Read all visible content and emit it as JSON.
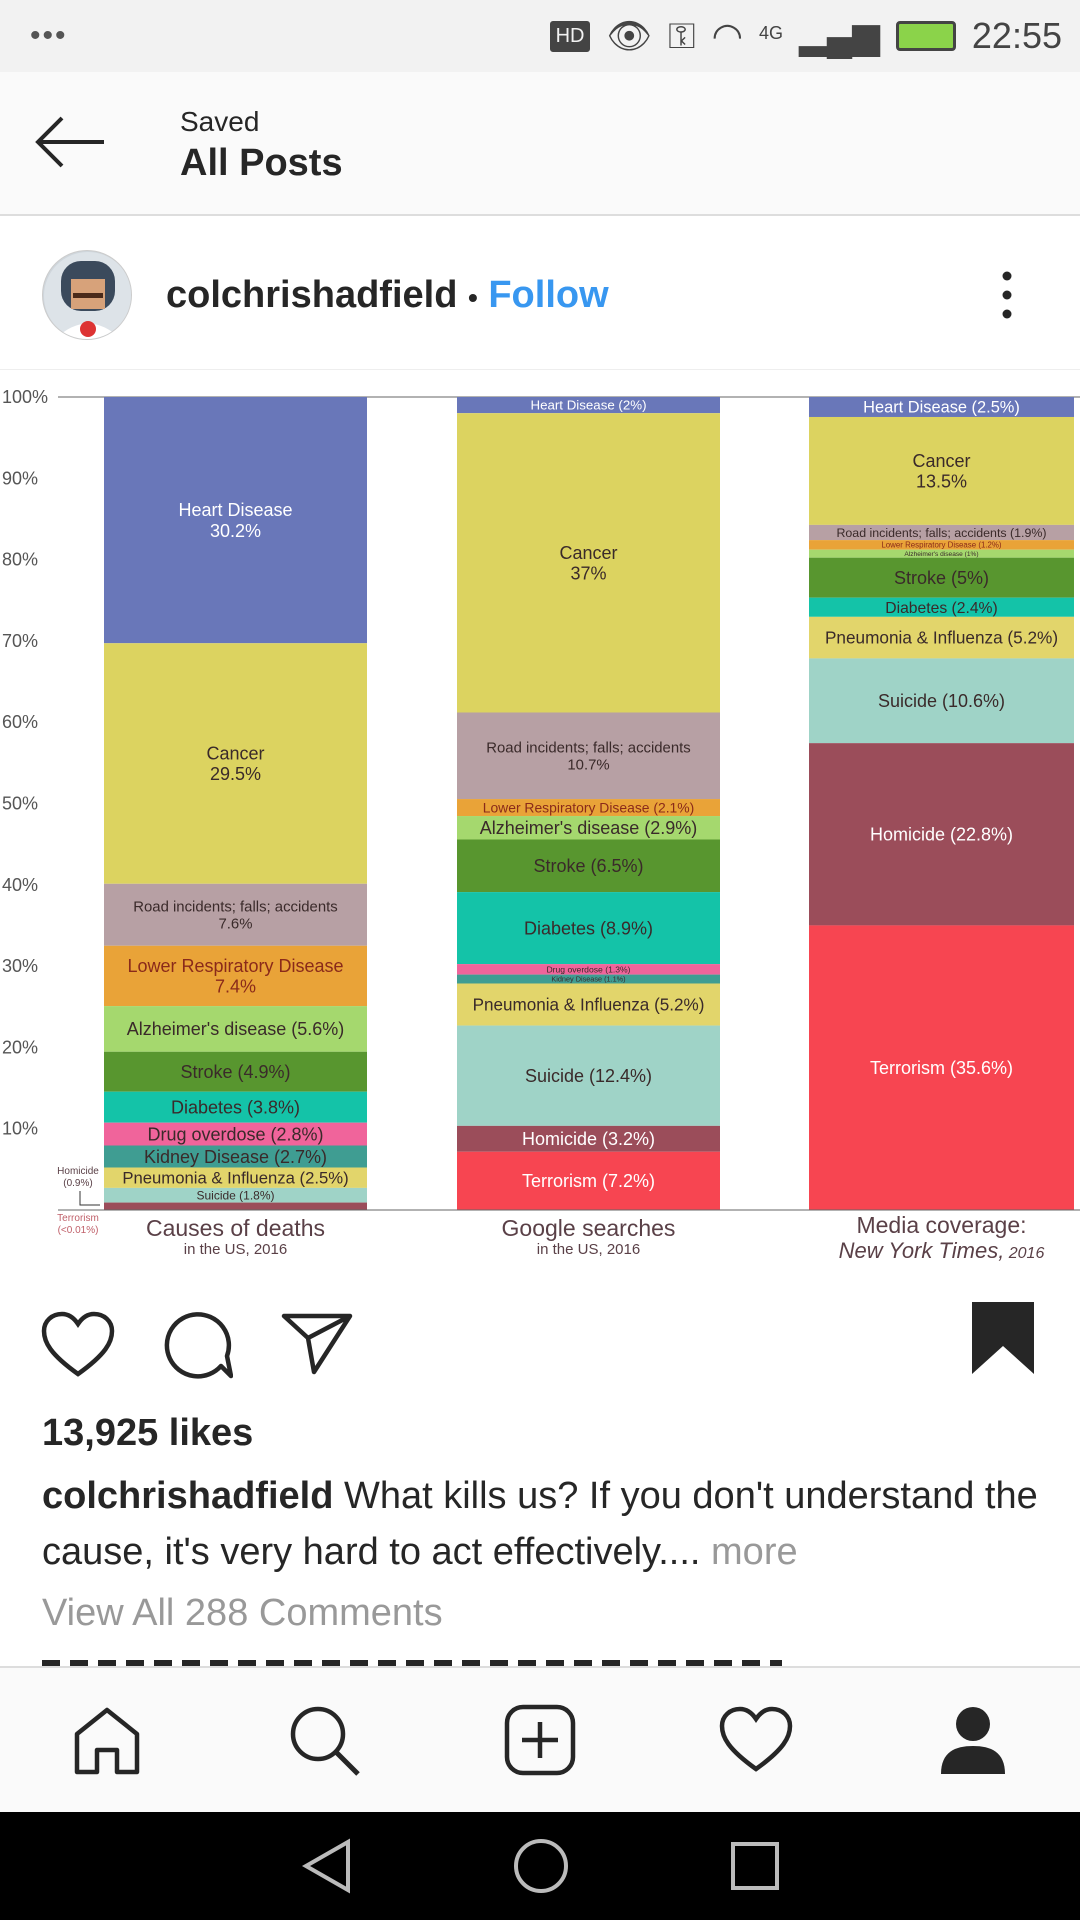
{
  "status_bar": {
    "badge": "HD",
    "network": "4G",
    "time": "22:55"
  },
  "header": {
    "subtitle": "Saved",
    "title": "All Posts"
  },
  "post": {
    "username": "colchrishadfield",
    "separator": "•",
    "follow_label": "Follow",
    "likes": "13,925 likes",
    "caption_text": "What kills us? If you don't understand the cause, it's very hard to act effectively....",
    "more_label": "more",
    "comments_link": "View All 288 Comments",
    "bookmarked": true
  },
  "chart_data": {
    "type": "bar",
    "stacked": true,
    "ylim": [
      0,
      100
    ],
    "yticks": [
      "10%",
      "20%",
      "30%",
      "40%",
      "50%",
      "60%",
      "70%",
      "80%",
      "90%",
      "100%"
    ],
    "colors": {
      "Heart Disease": "#6977b9",
      "Cancer": "#dcd360",
      "Road incidents": "#b7a0a4",
      "Lower Respiratory Disease": "#e9a338",
      "Alzheimer's disease": "#a5d86e",
      "Stroke": "#58962f",
      "Diabetes": "#14c3a8",
      "Drug overdose": "#f0649b",
      "Kidney Disease": "#3f9d92",
      "Pneumonia & Influenza": "#e2d56b",
      "Suicide": "#9fd3c7",
      "Homicide": "#9b4d5a",
      "Terrorism": "#f74551"
    },
    "categories": [
      {
        "title": "Causes of deaths",
        "subtitle": "in the US, 2016",
        "subtitle_italic": "",
        "annotations": {
          "homicide": "Homicide",
          "homicide_value": "(0.9%)",
          "terrorism": "Terrorism",
          "terrorism_value": "(<0.01%)"
        },
        "segments": [
          {
            "name": "Heart Disease",
            "value": 30.2,
            "label": [
              "Heart Disease",
              "30.2%"
            ]
          },
          {
            "name": "Cancer",
            "value": 29.5,
            "label": [
              "Cancer",
              "29.5%"
            ]
          },
          {
            "name": "Road incidents",
            "value": 7.6,
            "label": [
              "Road incidents; falls; accidents",
              "7.6%"
            ]
          },
          {
            "name": "Lower Respiratory Disease",
            "value": 7.4,
            "label": [
              "Lower Respiratory Disease",
              "7.4%"
            ]
          },
          {
            "name": "Alzheimer's disease",
            "value": 5.6,
            "label": [
              "Alzheimer's disease (5.6%)"
            ]
          },
          {
            "name": "Stroke",
            "value": 4.9,
            "label": [
              "Stroke (4.9%)"
            ]
          },
          {
            "name": "Diabetes",
            "value": 3.8,
            "label": [
              "Diabetes (3.8%)"
            ]
          },
          {
            "name": "Drug overdose",
            "value": 2.8,
            "label": [
              "Drug overdose (2.8%)"
            ]
          },
          {
            "name": "Kidney Disease",
            "value": 2.7,
            "label": [
              "Kidney Disease (2.7%)"
            ]
          },
          {
            "name": "Pneumonia & Influenza",
            "value": 2.5,
            "label": [
              "Pneumonia & Influenza (2.5%)"
            ]
          },
          {
            "name": "Suicide",
            "value": 1.8,
            "label": [
              "Suicide (1.8%)"
            ]
          },
          {
            "name": "Homicide",
            "value": 0.9,
            "label": []
          },
          {
            "name": "Terrorism",
            "value": 0.01,
            "label": []
          }
        ]
      },
      {
        "title": "Google searches",
        "subtitle": "in the US, 2016",
        "subtitle_italic": "",
        "segments": [
          {
            "name": "Heart Disease",
            "value": 2,
            "label": [
              "Heart Disease (2%)"
            ]
          },
          {
            "name": "Cancer",
            "value": 37,
            "label": [
              "Cancer",
              "37%"
            ]
          },
          {
            "name": "Road incidents",
            "value": 10.7,
            "label": [
              "Road incidents; falls; accidents",
              "10.7%"
            ]
          },
          {
            "name": "Lower Respiratory Disease",
            "value": 2.1,
            "label": [
              "Lower Respiratory Disease (2.1%)"
            ]
          },
          {
            "name": "Alzheimer's disease",
            "value": 2.9,
            "label": [
              "Alzheimer's disease (2.9%)"
            ]
          },
          {
            "name": "Stroke",
            "value": 6.5,
            "label": [
              "Stroke (6.5%)"
            ]
          },
          {
            "name": "Diabetes",
            "value": 8.9,
            "label": [
              "Diabetes (8.9%)"
            ]
          },
          {
            "name": "Drug overdose",
            "value": 1.3,
            "label": [
              "Drug overdose (1.3%)"
            ]
          },
          {
            "name": "Kidney Disease",
            "value": 1.1,
            "label": [
              "Kidney Disease (1.1%)"
            ]
          },
          {
            "name": "Pneumonia & Influenza",
            "value": 5.2,
            "label": [
              "Pneumonia & Influenza (5.2%)"
            ]
          },
          {
            "name": "Suicide",
            "value": 12.4,
            "label": [
              "Suicide (12.4%)"
            ]
          },
          {
            "name": "Homicide",
            "value": 3.2,
            "label": [
              "Homicide (3.2%)"
            ]
          },
          {
            "name": "Terrorism",
            "value": 7.2,
            "label": [
              "Terrorism (7.2%)"
            ]
          }
        ]
      },
      {
        "title": "Media coverage:",
        "subtitle": "New York Times,",
        "subtitle_italic": "2016",
        "segments": [
          {
            "name": "Heart Disease",
            "value": 2.5,
            "label": [
              "Heart Disease (2.5%)"
            ]
          },
          {
            "name": "Cancer",
            "value": 13.5,
            "label": [
              "Cancer",
              "13.5%"
            ]
          },
          {
            "name": "Road incidents",
            "value": 1.9,
            "label": [
              "Road incidents; falls; accidents (1.9%)"
            ]
          },
          {
            "name": "Lower Respiratory Disease",
            "value": 1.2,
            "label": [
              "Lower Respiratory Disease (1.2%)"
            ]
          },
          {
            "name": "Alzheimer's disease",
            "value": 1,
            "label": [
              "Alzheimer's disease (1%)"
            ]
          },
          {
            "name": "Stroke",
            "value": 5,
            "label": [
              "Stroke (5%)"
            ]
          },
          {
            "name": "Diabetes",
            "value": 2.4,
            "label": [
              "Diabetes (2.4%)"
            ]
          },
          {
            "name": "Pneumonia & Influenza",
            "value": 5.2,
            "label": [
              "Pneumonia & Influenza (5.2%)"
            ]
          },
          {
            "name": "Suicide",
            "value": 10.6,
            "label": [
              "Suicide (10.6%)"
            ]
          },
          {
            "name": "Homicide",
            "value": 22.8,
            "label": [
              "Homicide (22.8%)"
            ]
          },
          {
            "name": "Terrorism",
            "value": 35.6,
            "label": [
              "Terrorism (35.6%)"
            ]
          }
        ]
      }
    ]
  }
}
